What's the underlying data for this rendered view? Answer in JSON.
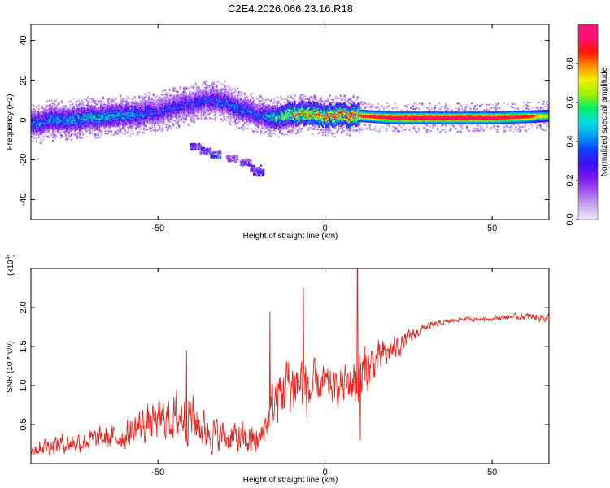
{
  "title": "C2E4.2026.066.23.16.R18",
  "colors": {
    "line": "#e8261f",
    "axis": "#000000",
    "background": "#ffffff"
  },
  "chart_data": [
    {
      "type": "heatmap",
      "name": "spectrogram",
      "xlabel": "Height of straight line (km)",
      "ylabel": "Frequency (Hz)",
      "xlim": [
        -88,
        67
      ],
      "ylim": [
        -50,
        48
      ],
      "xticks": [
        -50,
        0,
        50
      ],
      "yticks": [
        -40,
        -20,
        0,
        20,
        40
      ],
      "colorbar": {
        "label": "Normalized spectral amplitude",
        "range": [
          0,
          1
        ],
        "ticks": [
          0.0,
          0.2,
          0.4,
          0.6,
          0.8
        ],
        "tick_labels": [
          "0.0",
          "0.2",
          "0.4",
          "0.6",
          "0.8"
        ],
        "stops": [
          "#f2eaff",
          "#ccabf2",
          "#a25af0",
          "#7d17f0",
          "#3a10f5",
          "#1040ff",
          "#00a0f0",
          "#00e0e0",
          "#00f060",
          "#a0f000",
          "#f0f000",
          "#ff9000",
          "#ff1500",
          "#ff1070",
          "#f5127a"
        ]
      },
      "ridge": {
        "x": [
          -88,
          -80,
          -70,
          -60,
          -50,
          -45,
          -40,
          -35,
          -30,
          -25,
          -20,
          -15,
          -10,
          -5,
          0,
          5,
          10,
          20,
          30,
          40,
          50,
          60,
          67
        ],
        "y": [
          -2,
          0,
          1,
          2,
          4,
          6,
          8,
          10,
          9,
          5,
          2,
          1,
          3,
          3,
          2,
          2,
          2,
          1,
          1,
          1,
          1,
          1.5,
          2
        ],
        "amp": [
          0.35,
          0.4,
          0.42,
          0.4,
          0.3,
          0.3,
          0.3,
          0.3,
          0.35,
          0.35,
          0.3,
          0.5,
          0.65,
          0.7,
          0.75,
          0.75,
          0.8,
          0.9,
          0.92,
          0.92,
          0.92,
          0.85,
          0.6
        ]
      },
      "secondary_branch": {
        "x": [
          -39,
          -36,
          -33,
          -28,
          -24,
          -21,
          -20
        ],
        "y": [
          -13,
          -15,
          -17,
          -19,
          -21,
          -24,
          -26
        ],
        "amp": [
          0.3,
          0.3,
          0.35,
          0.2,
          0.25,
          0.3,
          0.3
        ]
      }
    },
    {
      "type": "line",
      "name": "snr",
      "xlabel": "Height of straight line (km)",
      "ylabel": "SNR (10 * v/v)",
      "multiplier": "(x10",
      "multiplier_exp": "4",
      "xlim": [
        -88,
        67
      ],
      "ylim": [
        0,
        2.5
      ],
      "xticks": [
        -50,
        0,
        50
      ],
      "yticks": [
        0.5,
        1.0,
        1.5,
        2.0
      ],
      "ytick_labels": [
        "0.5",
        "1.0",
        "1.5",
        "2.0"
      ],
      "envelope": {
        "x": [
          -88,
          -80,
          -70,
          -60,
          -55,
          -50,
          -45,
          -42,
          -40,
          -38,
          -35,
          -30,
          -25,
          -22,
          -20,
          -18,
          -15,
          -12,
          -10,
          -8,
          -6,
          -5,
          -3,
          0,
          3,
          5,
          8,
          10,
          11,
          12,
          15,
          20,
          25,
          30,
          35,
          40,
          45,
          50,
          55,
          60,
          65,
          67
        ],
        "mean": [
          0.2,
          0.25,
          0.3,
          0.35,
          0.5,
          0.55,
          0.6,
          0.65,
          0.6,
          0.5,
          0.4,
          0.35,
          0.3,
          0.3,
          0.25,
          0.5,
          0.8,
          1.0,
          1.0,
          1.05,
          1.0,
          0.9,
          1.0,
          1.0,
          0.95,
          1.0,
          1.05,
          1.1,
          1.1,
          1.2,
          1.3,
          1.45,
          1.6,
          1.75,
          1.8,
          1.85,
          1.85,
          1.86,
          1.88,
          1.88,
          1.88,
          1.85
        ],
        "amplitude": [
          0.15,
          0.18,
          0.2,
          0.25,
          0.35,
          0.35,
          0.45,
          0.5,
          0.5,
          0.4,
          0.35,
          0.3,
          0.3,
          0.3,
          0.25,
          0.3,
          0.55,
          0.6,
          0.6,
          0.6,
          0.65,
          0.55,
          0.4,
          0.35,
          0.3,
          0.35,
          0.45,
          0.6,
          0.7,
          0.5,
          0.35,
          0.25,
          0.15,
          0.08,
          0.05,
          0.04,
          0.04,
          0.04,
          0.05,
          0.06,
          0.08,
          0.1
        ]
      },
      "spikes": [
        {
          "x": -41.5,
          "y": 1.45
        },
        {
          "x": -16.5,
          "y": 1.95
        },
        {
          "x": -6.5,
          "y": 2.25
        },
        {
          "x": 9.7,
          "y": 2.5
        },
        {
          "x": 10.5,
          "y": 0.3
        }
      ]
    }
  ]
}
